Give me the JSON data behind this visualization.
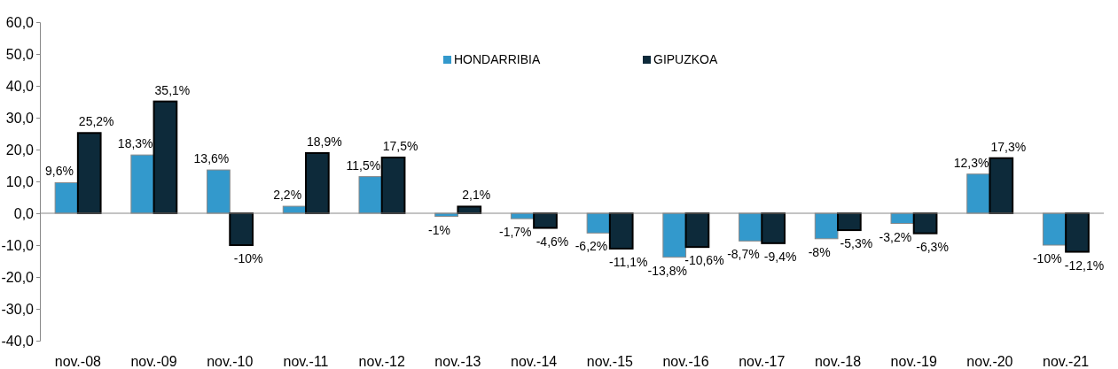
{
  "chart_data": {
    "type": "bar",
    "categories": [
      "nov.-08",
      "nov.-09",
      "nov.-10",
      "nov.-11",
      "nov.-12",
      "nov.-13",
      "nov.-14",
      "nov.-15",
      "nov.-16",
      "nov.-17",
      "nov.-18",
      "nov.-19",
      "nov.-20",
      "nov.-21"
    ],
    "series": [
      {
        "name": "HONDARRIBIA",
        "color": "#3399cc",
        "values": [
          9.6,
          18.3,
          13.6,
          2.2,
          11.5,
          -1,
          -1.7,
          -6.2,
          -13.8,
          -8.7,
          -8,
          -3.2,
          12.3,
          -10
        ],
        "value_labels": [
          "9,6%",
          "18,3%",
          "13,6%",
          "2,2%",
          "11,5%",
          "-1%",
          "-1,7%",
          "-6,2%",
          "-13,8%",
          "-8,7%",
          "-8%",
          "-3,2%",
          "12,3%",
          "-10%"
        ]
      },
      {
        "name": "GIPUZKOA",
        "color": "#0d2a3a",
        "values": [
          25.2,
          35.1,
          -10,
          18.9,
          17.5,
          2.1,
          -4.6,
          -11.1,
          -10.6,
          -9.4,
          -5.3,
          -6.3,
          17.3,
          -12.1
        ],
        "value_labels": [
          "25,2%",
          "35,1%",
          "-10%",
          "18,9%",
          "17,5%",
          "2,1%",
          "-4,6%",
          "-11,1%",
          "-10,6%",
          "-9,4%",
          "-5,3%",
          "-6,3%",
          "17,3%",
          "-12,1%"
        ]
      }
    ],
    "ylim": [
      -40,
      60
    ],
    "yticks": [
      {
        "value": -40,
        "label": "-40,0"
      },
      {
        "value": -30,
        "label": "-30,0"
      },
      {
        "value": -20,
        "label": "-20,0"
      },
      {
        "value": -10,
        "label": "-10,0"
      },
      {
        "value": 0,
        "label": "0,0"
      },
      {
        "value": 10,
        "label": "10,0"
      },
      {
        "value": 20,
        "label": "20,0"
      },
      {
        "value": 30,
        "label": "30,0"
      },
      {
        "value": 40,
        "label": "40,0"
      },
      {
        "value": 50,
        "label": "50,0"
      },
      {
        "value": 60,
        "label": "60,0"
      }
    ],
    "legend": "top"
  }
}
